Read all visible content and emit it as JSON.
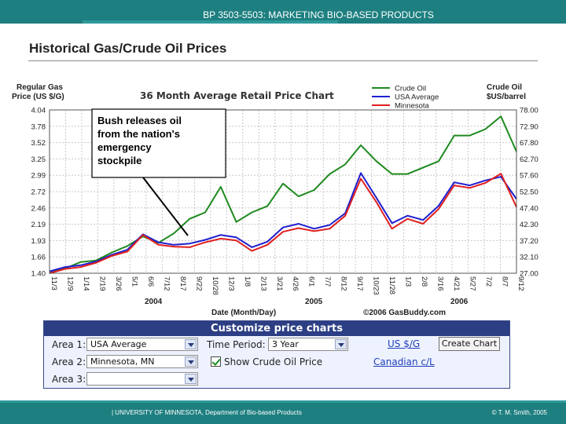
{
  "header": {
    "course": "BP 3503-5503: MARKETING BIO-BASED PRODUCTS"
  },
  "slide": {
    "title": "Historical Gas/Crude Oil Prices"
  },
  "chart_data": {
    "type": "line",
    "title": "36 Month Average Retail Price Chart",
    "ylabel_left": [
      "Regular Gas",
      "Price (US $/G)"
    ],
    "ylabel_right": [
      "Crude Oil",
      "$US/barrel"
    ],
    "xlabel": "Date (Month/Day)",
    "credit": "©2006 GasBuddy.com",
    "legend": [
      "Crude Oil",
      "USA Average",
      "Minnesota"
    ],
    "legend_placement": "top-right",
    "grid": true,
    "y_left_ticks": [
      "4.04",
      "3.78",
      "3.52",
      "3.25",
      "2.99",
      "2.72",
      "2.46",
      "2.19",
      "1.93",
      "1.66",
      "1.40"
    ],
    "y_right_ticks": [
      "78.00",
      "72.90",
      "67.80",
      "62.70",
      "57.60",
      "52.50",
      "47.40",
      "42.30",
      "37.20",
      "32.10",
      "27.00"
    ],
    "x_ticks": [
      "11/3",
      "12/9",
      "1/14",
      "2/19",
      "3/26",
      "5/1",
      "6/6",
      "7/12",
      "8/17",
      "9/22",
      "10/28",
      "12/3",
      "1/8",
      "2/13",
      "3/21",
      "4/26",
      "6/1",
      "7/7",
      "8/12",
      "9/17",
      "10/23",
      "11/28",
      "1/3",
      "2/8",
      "3/16",
      "4/21",
      "5/27",
      "7/2",
      "8/7",
      "9/12"
    ],
    "year_labels": [
      "2004",
      "2005",
      "2006"
    ],
    "ylim_left": [
      1.4,
      4.04
    ],
    "ylim_right": [
      27.0,
      78.0
    ],
    "series": [
      {
        "name": "Crude Oil",
        "axis": "right",
        "color": "#1f8a1f",
        "values": [
          27.5,
          28.5,
          30.5,
          31.0,
          33.5,
          35.5,
          38.5,
          36.5,
          39.5,
          44.0,
          46.0,
          54.0,
          43.0,
          46.0,
          48.0,
          55.0,
          51.0,
          53.0,
          58.0,
          61.0,
          67.0,
          62.0,
          58.0,
          58.0,
          60.0,
          62.0,
          70.0,
          70.0,
          72.0,
          76.0,
          65.0
        ]
      },
      {
        "name": "USA Average",
        "axis": "left",
        "color": "#1f1fd0",
        "values": [
          1.43,
          1.5,
          1.53,
          1.59,
          1.7,
          1.78,
          2.03,
          1.9,
          1.86,
          1.88,
          1.94,
          2.02,
          1.98,
          1.82,
          1.91,
          2.14,
          2.2,
          2.12,
          2.18,
          2.37,
          3.02,
          2.62,
          2.21,
          2.33,
          2.26,
          2.49,
          2.87,
          2.82,
          2.9,
          2.96,
          2.6
        ]
      },
      {
        "name": "Minnesota",
        "axis": "left",
        "color": "#e02020",
        "values": [
          1.4,
          1.47,
          1.5,
          1.57,
          1.68,
          1.75,
          2.02,
          1.86,
          1.83,
          1.82,
          1.9,
          1.96,
          1.93,
          1.76,
          1.86,
          2.07,
          2.13,
          2.08,
          2.12,
          2.33,
          2.93,
          2.55,
          2.12,
          2.28,
          2.2,
          2.44,
          2.82,
          2.78,
          2.86,
          3.01,
          2.47
        ]
      }
    ],
    "annotation": {
      "text": [
        "Bush releases oil",
        "from the nation's",
        "emergency",
        "stockpile"
      ]
    }
  },
  "controls": {
    "title": "Customize price charts",
    "area1_label": "Area 1:",
    "area1_value": "USA Average",
    "area2_label": "Area 2:",
    "area2_value": "Minnesota, MN",
    "area3_label": "Area 3:",
    "area3_value": "",
    "time_label": "Time Period:",
    "time_value": "3 Year",
    "crude_checkbox_label": "Show Crude Oil Price",
    "link_usd": "US $/G",
    "link_cad": "Canadian c/L",
    "create_button": "Create Chart"
  },
  "footer": {
    "org": "|  UNIVERSITY OF MINNESOTA, Department of Bio-based Products",
    "copyright": "© T. M. Smith, 2005"
  }
}
